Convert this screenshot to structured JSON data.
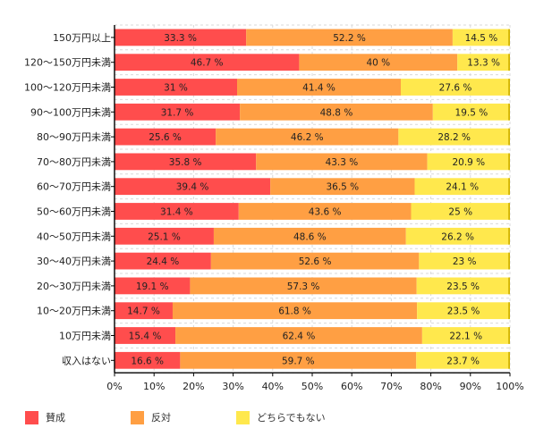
{
  "chart_data": {
    "type": "bar",
    "orientation": "horizontal",
    "stacked": "percent",
    "title": "",
    "xlabel": "",
    "ylabel": "",
    "xlim": [
      0,
      100
    ],
    "x_ticks": [
      "0%",
      "10%",
      "20%",
      "30%",
      "40%",
      "50%",
      "60%",
      "70%",
      "80%",
      "90%",
      "100%"
    ],
    "grid": true,
    "legend_position": "bottom-left",
    "categories": [
      "150万円以上",
      "120〜150万円未満",
      "100〜120万円未満",
      "90〜100万円未満",
      "80〜90万円未満",
      "70〜80万円未満",
      "60〜70万円未満",
      "50〜60万円未満",
      "40〜50万円未満",
      "30〜40万円未満",
      "20〜30万円未満",
      "10〜20万円未満",
      "10万円未満",
      "収入はない"
    ],
    "series": [
      {
        "name": "賛成",
        "color": "#ff4d4d",
        "values": [
          33.3,
          46.7,
          31,
          31.7,
          25.6,
          35.8,
          39.4,
          31.4,
          25.1,
          24.4,
          19.1,
          14.7,
          15.4,
          16.6
        ],
        "labels": [
          "33.3 %",
          "46.7 %",
          "31 %",
          "31.7 %",
          "25.6 %",
          "35.8 %",
          "39.4 %",
          "31.4 %",
          "25.1 %",
          "24.4 %",
          "19.1 %",
          "14.7 %",
          "15.4 %",
          "16.6 %"
        ]
      },
      {
        "name": "反対",
        "color": "#ff9f43",
        "values": [
          52.2,
          40,
          41.4,
          48.8,
          46.2,
          43.3,
          36.5,
          43.6,
          48.6,
          52.6,
          57.3,
          61.8,
          62.4,
          59.7
        ],
        "labels": [
          "52.2 %",
          "40 %",
          "41.4 %",
          "48.8 %",
          "46.2 %",
          "43.3 %",
          "36.5 %",
          "43.6 %",
          "48.6 %",
          "52.6 %",
          "57.3 %",
          "61.8 %",
          "62.4 %",
          "59.7 %"
        ]
      },
      {
        "name": "どちらでもない",
        "color": "#ffe84d",
        "values": [
          14.5,
          13.3,
          27.6,
          19.5,
          28.2,
          20.9,
          24.1,
          25,
          26.2,
          23,
          23.5,
          23.5,
          22.1,
          23.7
        ],
        "labels": [
          "14.5 %",
          "13.3 %",
          "27.6 %",
          "19.5 %",
          "28.2 %",
          "20.9 %",
          "24.1 %",
          "25 %",
          "26.2 %",
          "23 %",
          "23.5 %",
          "23.5 %",
          "22.1 %",
          "23.7 %"
        ]
      }
    ]
  }
}
